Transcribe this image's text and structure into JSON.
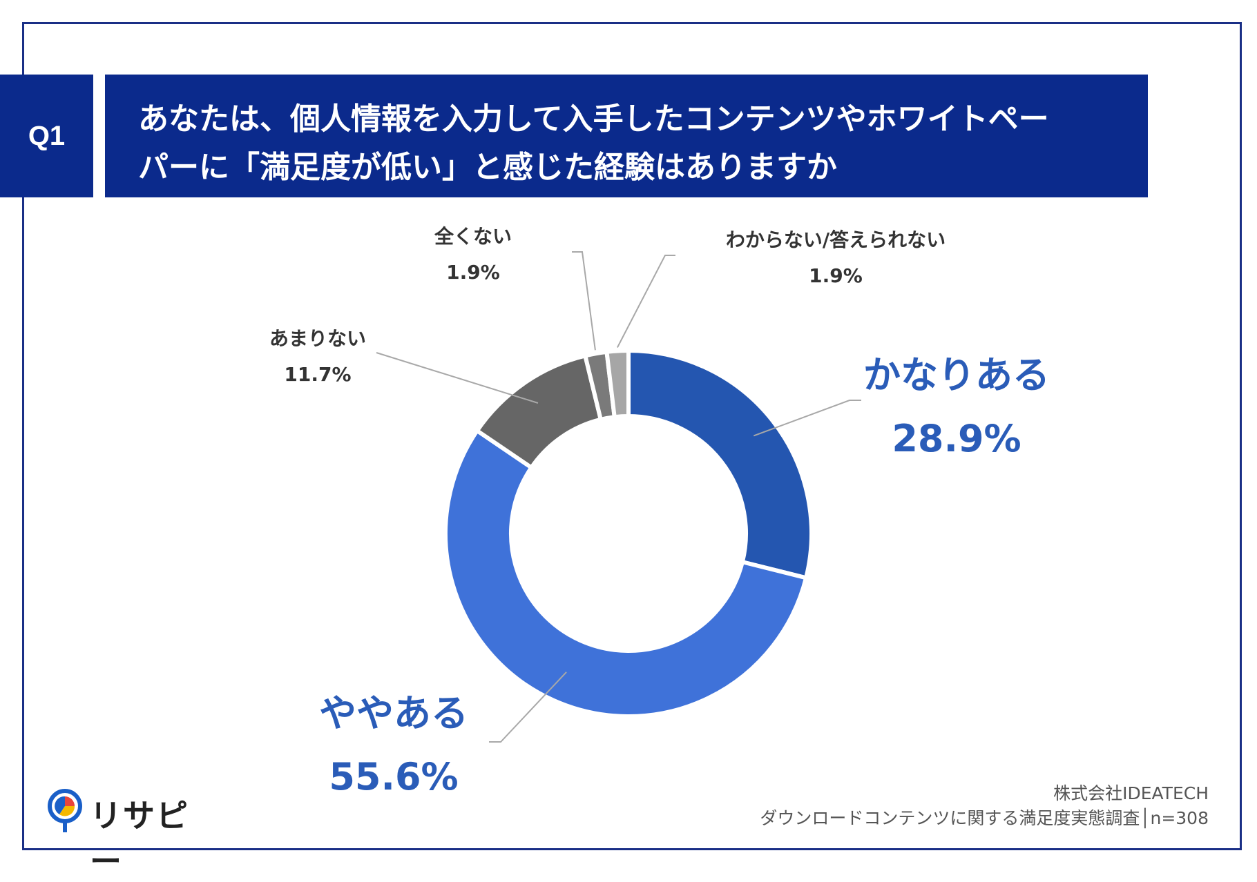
{
  "question": {
    "badge": "Q1",
    "title_line1": "あなたは、個人情報を入力して入手したコンテンツやホワイトペー",
    "title_line2": "パーに「満足度が低い」と感じた経験はありますか"
  },
  "chart_data": {
    "type": "pie",
    "donut": true,
    "categories": [
      "かなりある",
      "ややある",
      "あまりない",
      "全くない",
      "わからない/答えられない"
    ],
    "values": [
      28.9,
      55.6,
      11.7,
      1.9,
      1.9
    ],
    "value_labels": [
      "28.9%",
      "55.6%",
      "11.7%",
      "1.9%",
      "1.9%"
    ],
    "colors": [
      "#2456b0",
      "#3f72d9",
      "#666666",
      "#7a7a7a",
      "#a6a6a6"
    ]
  },
  "labels": {
    "kanari": {
      "name": "かなりある",
      "pct": "28.9%"
    },
    "yaya": {
      "name": "ややある",
      "pct": "55.6%"
    },
    "amari": {
      "name": "あまりない",
      "pct": "11.7%"
    },
    "mattaku": {
      "name": "全くない",
      "pct": "1.9%"
    },
    "wakaranai": {
      "name": "わからない/答えられない",
      "pct": "1.9%"
    }
  },
  "footer": {
    "company": "株式会社IDEATECH",
    "survey": "ダウンロードコンテンツに関する満足度実態調査│n=308"
  },
  "logo": {
    "text": "リサピー",
    "icon": "pin-icon"
  }
}
